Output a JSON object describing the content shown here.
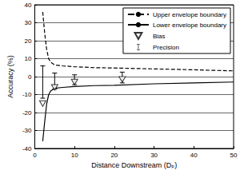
{
  "chart_data": {
    "type": "line",
    "x_label": "Distance Downstream (Dₚ)",
    "y_label": "Accuracy (%)",
    "xlim": [
      0,
      50
    ],
    "xticks": [
      0,
      10,
      20,
      30,
      40,
      50
    ],
    "ylim": [
      -40,
      40
    ],
    "yticks": [
      -40,
      -30,
      -20,
      -10,
      0,
      10,
      20,
      30,
      40
    ],
    "grid": "y",
    "legend": "upper right",
    "series": [
      {
        "name": "Upper envelope boundary",
        "type": "line",
        "line_style": "dashed",
        "color": "#000000",
        "x": [
          2,
          2.5,
          3,
          3.5,
          4,
          5,
          7,
          10,
          15,
          20,
          30,
          40,
          50
        ],
        "values": [
          36,
          24,
          15,
          10,
          8,
          6.5,
          6,
          5.5,
          5,
          4.8,
          4.3,
          3.8,
          3.2
        ]
      },
      {
        "name": "Lower envelope boundary",
        "type": "line",
        "line_style": "solid",
        "color": "#000000",
        "x": [
          2,
          2.5,
          3,
          3.5,
          4,
          5,
          7,
          10,
          15,
          20,
          30,
          40,
          50
        ],
        "values": [
          -36,
          -25,
          -15,
          -10,
          -8,
          -6.5,
          -6,
          -5.5,
          -5,
          -4.8,
          -4,
          -3.5,
          -3
        ]
      },
      {
        "name": "Bias",
        "type": "scatter",
        "marker": "triangle_down",
        "color": "#000000",
        "x": [
          2,
          5,
          10,
          22
        ],
        "values": [
          -15,
          -6,
          -3,
          -1.5
        ]
      },
      {
        "name": "Precision",
        "type": "errorbar",
        "color": "#000000",
        "x": [
          2,
          5,
          10,
          22
        ],
        "low": [
          -12,
          -7,
          -4.5,
          -3.5
        ],
        "high": [
          6,
          2,
          1,
          2.5
        ]
      }
    ]
  }
}
